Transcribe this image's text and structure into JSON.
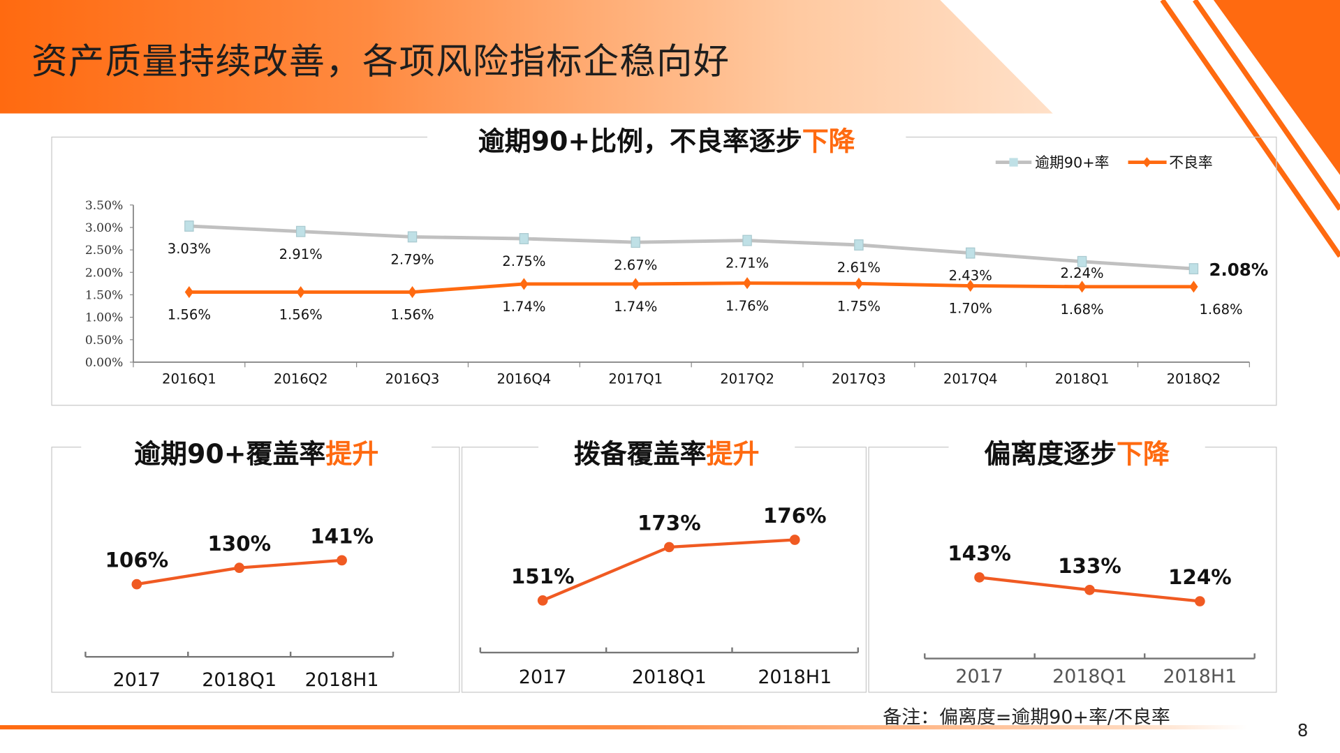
{
  "page": {
    "title": "资产质量持续改善，各项风险指标企稳向好",
    "footnote": "备注：偏离度=逾期90+率/不良率",
    "page_number": "8"
  },
  "colors": {
    "accent": "#ff6a10",
    "grey_series": "#c0c0c0",
    "marker_grey": "#bfe0e6"
  },
  "chart_data": [
    {
      "type": "line",
      "title_main": "逾期90+比例，不良率逐步",
      "title_highlight": "下降",
      "categories": [
        "2016Q1",
        "2016Q2",
        "2016Q3",
        "2016Q4",
        "2017Q1",
        "2017Q2",
        "2017Q3",
        "2017Q4",
        "2018Q1",
        "2018Q2"
      ],
      "yticks": [
        "0.00%",
        "0.50%",
        "1.00%",
        "1.50%",
        "2.00%",
        "2.50%",
        "3.00%",
        "3.50%"
      ],
      "ylim": [
        0,
        3.5
      ],
      "legend_position": "top-right",
      "series": [
        {
          "name": "逾期90+率",
          "color": "#c0c0c0",
          "values": [
            3.03,
            2.91,
            2.79,
            2.75,
            2.67,
            2.71,
            2.61,
            2.43,
            2.24,
            2.08
          ],
          "labels": [
            "3.03%",
            "2.91%",
            "2.79%",
            "2.75%",
            "2.67%",
            "2.71%",
            "2.61%",
            "2.43%",
            "2.24%",
            "2.08%"
          ]
        },
        {
          "name": "不良率",
          "color": "#ff6a10",
          "values": [
            1.56,
            1.56,
            1.56,
            1.74,
            1.74,
            1.76,
            1.75,
            1.7,
            1.68,
            1.68
          ],
          "labels": [
            "1.56%",
            "1.56%",
            "1.56%",
            "1.74%",
            "1.74%",
            "1.76%",
            "1.75%",
            "1.70%",
            "1.68%",
            "1.68%"
          ]
        }
      ]
    },
    {
      "type": "line",
      "title_main": "逾期90+覆盖率",
      "title_highlight": "提升",
      "categories": [
        "2017",
        "2018Q1",
        "2018H1"
      ],
      "values": [
        106,
        130,
        141
      ],
      "labels": [
        "106%",
        "130%",
        "141%"
      ]
    },
    {
      "type": "line",
      "title_main": "拨备覆盖率",
      "title_highlight": "提升",
      "categories": [
        "2017",
        "2018Q1",
        "2018H1"
      ],
      "values": [
        151,
        173,
        176
      ],
      "labels": [
        "151%",
        "173%",
        "176%"
      ]
    },
    {
      "type": "line",
      "title_main": "偏离度逐步",
      "title_highlight": "下降",
      "categories": [
        "2017",
        "2018Q1",
        "2018H1"
      ],
      "values": [
        143,
        133,
        124
      ],
      "labels": [
        "143%",
        "133%",
        "124%"
      ]
    }
  ]
}
